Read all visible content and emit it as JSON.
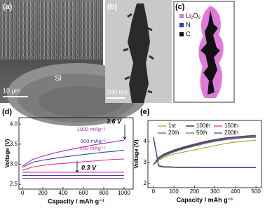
{
  "panels": [
    {
      "label": "(a)",
      "scale_bar": "10 μm",
      "annotation": "Si"
    },
    {
      "label": "(b)",
      "scale_bar": "200 nm"
    },
    {
      "label": "(c)",
      "legend": [
        "Li₂O₂",
        "N",
        "C"
      ]
    }
  ],
  "chart_data": [
    {
      "type": "line",
      "label": "(d)",
      "x_label": "Capacity / mAh g⁻¹",
      "y_label": "Voltage (V)",
      "x": [
        0,
        100,
        200,
        300,
        400,
        500,
        600,
        700,
        800,
        900,
        1000
      ],
      "xlim": [
        -35,
        1090
      ],
      "ylim": [
        2.38,
        4.16
      ],
      "xticks": [
        0,
        200,
        400,
        600,
        800,
        1000
      ],
      "yticks": [
        {
          "value": 2.5,
          "label": "2.5"
        },
        {
          "value": 3,
          "label": "3.0"
        },
        {
          "value": 3.5,
          "label": "3.5"
        },
        {
          "value": 4,
          "label": "4.0"
        }
      ],
      "series": [
        {
          "name": "1000 mAg⁻¹",
          "color": "#9b30c8",
          "charge": [
            2.95,
            3.12,
            3.2,
            3.27,
            3.33,
            3.38,
            3.43,
            3.48,
            3.52,
            3.56,
            3.6
          ],
          "discharge": [
            2.65,
            2.65,
            2.65,
            2.65,
            2.65,
            2.65,
            2.65,
            2.65,
            2.65,
            2.65,
            2.65
          ]
        },
        {
          "name": "600 mAg⁻¹",
          "color": "#3b3fa8",
          "charge": [
            2.92,
            3.05,
            3.1,
            3.14,
            3.18,
            3.21,
            3.24,
            3.27,
            3.3,
            3.32,
            3.35
          ],
          "discharge": [
            2.72,
            2.72,
            2.72,
            2.72,
            2.72,
            2.72,
            2.72,
            2.72,
            2.72,
            2.72,
            2.72
          ]
        },
        {
          "name": "100 mAg⁻¹",
          "color": "#e0308a",
          "charge": [
            2.85,
            2.93,
            2.97,
            3.0,
            3.02,
            3.04,
            3.06,
            3.08,
            3.1,
            3.12,
            3.13
          ],
          "discharge": [
            2.8,
            2.8,
            2.8,
            2.8,
            2.8,
            2.8,
            2.8,
            2.8,
            2.8,
            2.8,
            2.8
          ]
        }
      ],
      "annotations": [
        "3.6 V",
        "0.3 V"
      ]
    },
    {
      "type": "line",
      "label": "(e)",
      "x_label": "Capacity / mAh g⁻¹",
      "y_label": "Voltage (V)",
      "x": [
        0,
        25,
        50,
        100,
        150,
        200,
        250,
        300,
        350,
        400,
        450,
        500
      ],
      "xlim": [
        -27,
        527
      ],
      "ylim": [
        1.8,
        5.0
      ],
      "xticks": [
        0,
        100,
        200,
        300,
        400,
        500
      ],
      "yticks": [
        2,
        3,
        4
      ],
      "series": [
        {
          "name": "1st",
          "color": "#a0a020",
          "charge": [
            2.9,
            3.1,
            3.25,
            3.4,
            3.5,
            3.6,
            3.7,
            3.8,
            3.9,
            3.97,
            4.02,
            4.05
          ],
          "discharge": [
            4.2,
            2.8,
            2.77,
            2.76,
            2.75,
            2.75,
            2.75,
            2.75,
            2.75,
            2.75,
            2.75,
            2.75
          ]
        },
        {
          "name": "20th",
          "color": "#9b30c8",
          "charge": [
            2.9,
            3.15,
            3.3,
            3.5,
            3.65,
            3.78,
            3.9,
            4.0,
            4.08,
            4.14,
            4.18,
            4.2
          ],
          "discharge": [
            4.2,
            2.85,
            2.8,
            2.78,
            2.77,
            2.77,
            2.76,
            2.76,
            2.76,
            2.76,
            2.76,
            2.76
          ]
        },
        {
          "name": "100th",
          "color": "#111111",
          "charge": [
            2.9,
            3.2,
            3.35,
            3.55,
            3.7,
            3.82,
            3.95,
            4.05,
            4.12,
            4.17,
            4.2,
            4.23
          ],
          "discharge": [
            4.2,
            2.85,
            2.8,
            2.78,
            2.77,
            2.77,
            2.76,
            2.76,
            2.76,
            2.76,
            2.76,
            2.76
          ]
        },
        {
          "name": "50th",
          "color": "#2a9a3a",
          "charge": [
            2.9,
            3.18,
            3.33,
            3.52,
            3.67,
            3.8,
            3.92,
            4.02,
            4.1,
            4.15,
            4.19,
            4.22
          ],
          "discharge": [
            4.2,
            2.85,
            2.8,
            2.78,
            2.77,
            2.77,
            2.76,
            2.76,
            2.76,
            2.76,
            2.76,
            2.76
          ]
        },
        {
          "name": "150th",
          "color": "#e0304a",
          "charge": [
            2.9,
            3.22,
            3.38,
            3.58,
            3.73,
            3.85,
            3.97,
            4.07,
            4.14,
            4.19,
            4.23,
            4.26
          ],
          "discharge": [
            4.2,
            2.85,
            2.8,
            2.78,
            2.77,
            2.77,
            2.76,
            2.76,
            2.76,
            2.76,
            2.76,
            2.76
          ]
        },
        {
          "name": "200th",
          "color": "#2b3fb8",
          "charge": [
            2.9,
            3.24,
            3.4,
            3.6,
            3.75,
            3.88,
            4.0,
            4.1,
            4.17,
            4.22,
            4.26,
            4.3
          ],
          "discharge": [
            4.2,
            2.85,
            2.8,
            2.78,
            2.77,
            2.77,
            2.76,
            2.76,
            2.76,
            2.76,
            2.76,
            2.76
          ]
        }
      ]
    }
  ]
}
